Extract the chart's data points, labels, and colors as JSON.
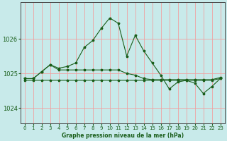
{
  "title": "Graphe pression niveau de la mer (hPa)",
  "background_color": "#c8eaea",
  "grid_color_v": "#f0a0a0",
  "grid_color_h": "#f0a0a0",
  "line_color": "#1a5e1a",
  "xlim": [
    -0.5,
    23.5
  ],
  "ylim": [
    1023.55,
    1027.05
  ],
  "yticks": [
    1024,
    1025,
    1026
  ],
  "xticks": [
    0,
    1,
    2,
    3,
    4,
    5,
    6,
    7,
    8,
    9,
    10,
    11,
    12,
    13,
    14,
    15,
    16,
    17,
    18,
    19,
    20,
    21,
    22,
    23
  ],
  "series1_x": [
    0,
    1,
    2,
    3,
    4,
    5,
    6,
    7,
    8,
    9,
    10,
    11,
    12,
    13,
    14,
    15,
    16,
    17,
    18,
    19,
    20,
    21,
    22,
    23
  ],
  "series1_y": [
    1024.8,
    1024.8,
    1024.8,
    1024.8,
    1024.8,
    1024.8,
    1024.8,
    1024.8,
    1024.8,
    1024.8,
    1024.8,
    1024.8,
    1024.8,
    1024.8,
    1024.8,
    1024.8,
    1024.8,
    1024.8,
    1024.8,
    1024.8,
    1024.8,
    1024.8,
    1024.8,
    1024.85
  ],
  "series2_x": [
    0,
    1,
    2,
    3,
    4,
    5,
    6,
    7,
    8,
    9,
    10,
    11,
    12,
    13,
    14,
    15,
    16,
    17,
    18,
    19,
    20,
    21,
    22,
    23
  ],
  "series2_y": [
    1024.85,
    1024.85,
    1025.05,
    1025.25,
    1025.1,
    1025.1,
    1025.1,
    1025.1,
    1025.1,
    1025.1,
    1025.1,
    1025.1,
    1025.0,
    1024.95,
    1024.85,
    1024.82,
    1024.82,
    1024.82,
    1024.82,
    1024.82,
    1024.82,
    1024.82,
    1024.82,
    1024.88
  ],
  "series3_x": [
    0,
    1,
    2,
    3,
    4,
    5,
    6,
    7,
    8,
    9,
    10,
    11,
    12,
    13,
    14,
    15,
    16,
    17,
    18,
    19,
    20,
    21,
    22,
    23
  ],
  "series3_y": [
    1024.85,
    1024.85,
    1025.05,
    1025.25,
    1025.15,
    1025.2,
    1025.3,
    1025.75,
    1025.95,
    1026.3,
    1026.6,
    1026.45,
    1025.5,
    1026.1,
    1025.65,
    1025.3,
    1024.95,
    1024.55,
    1024.75,
    1024.8,
    1024.72,
    1024.42,
    1024.62,
    1024.85
  ]
}
